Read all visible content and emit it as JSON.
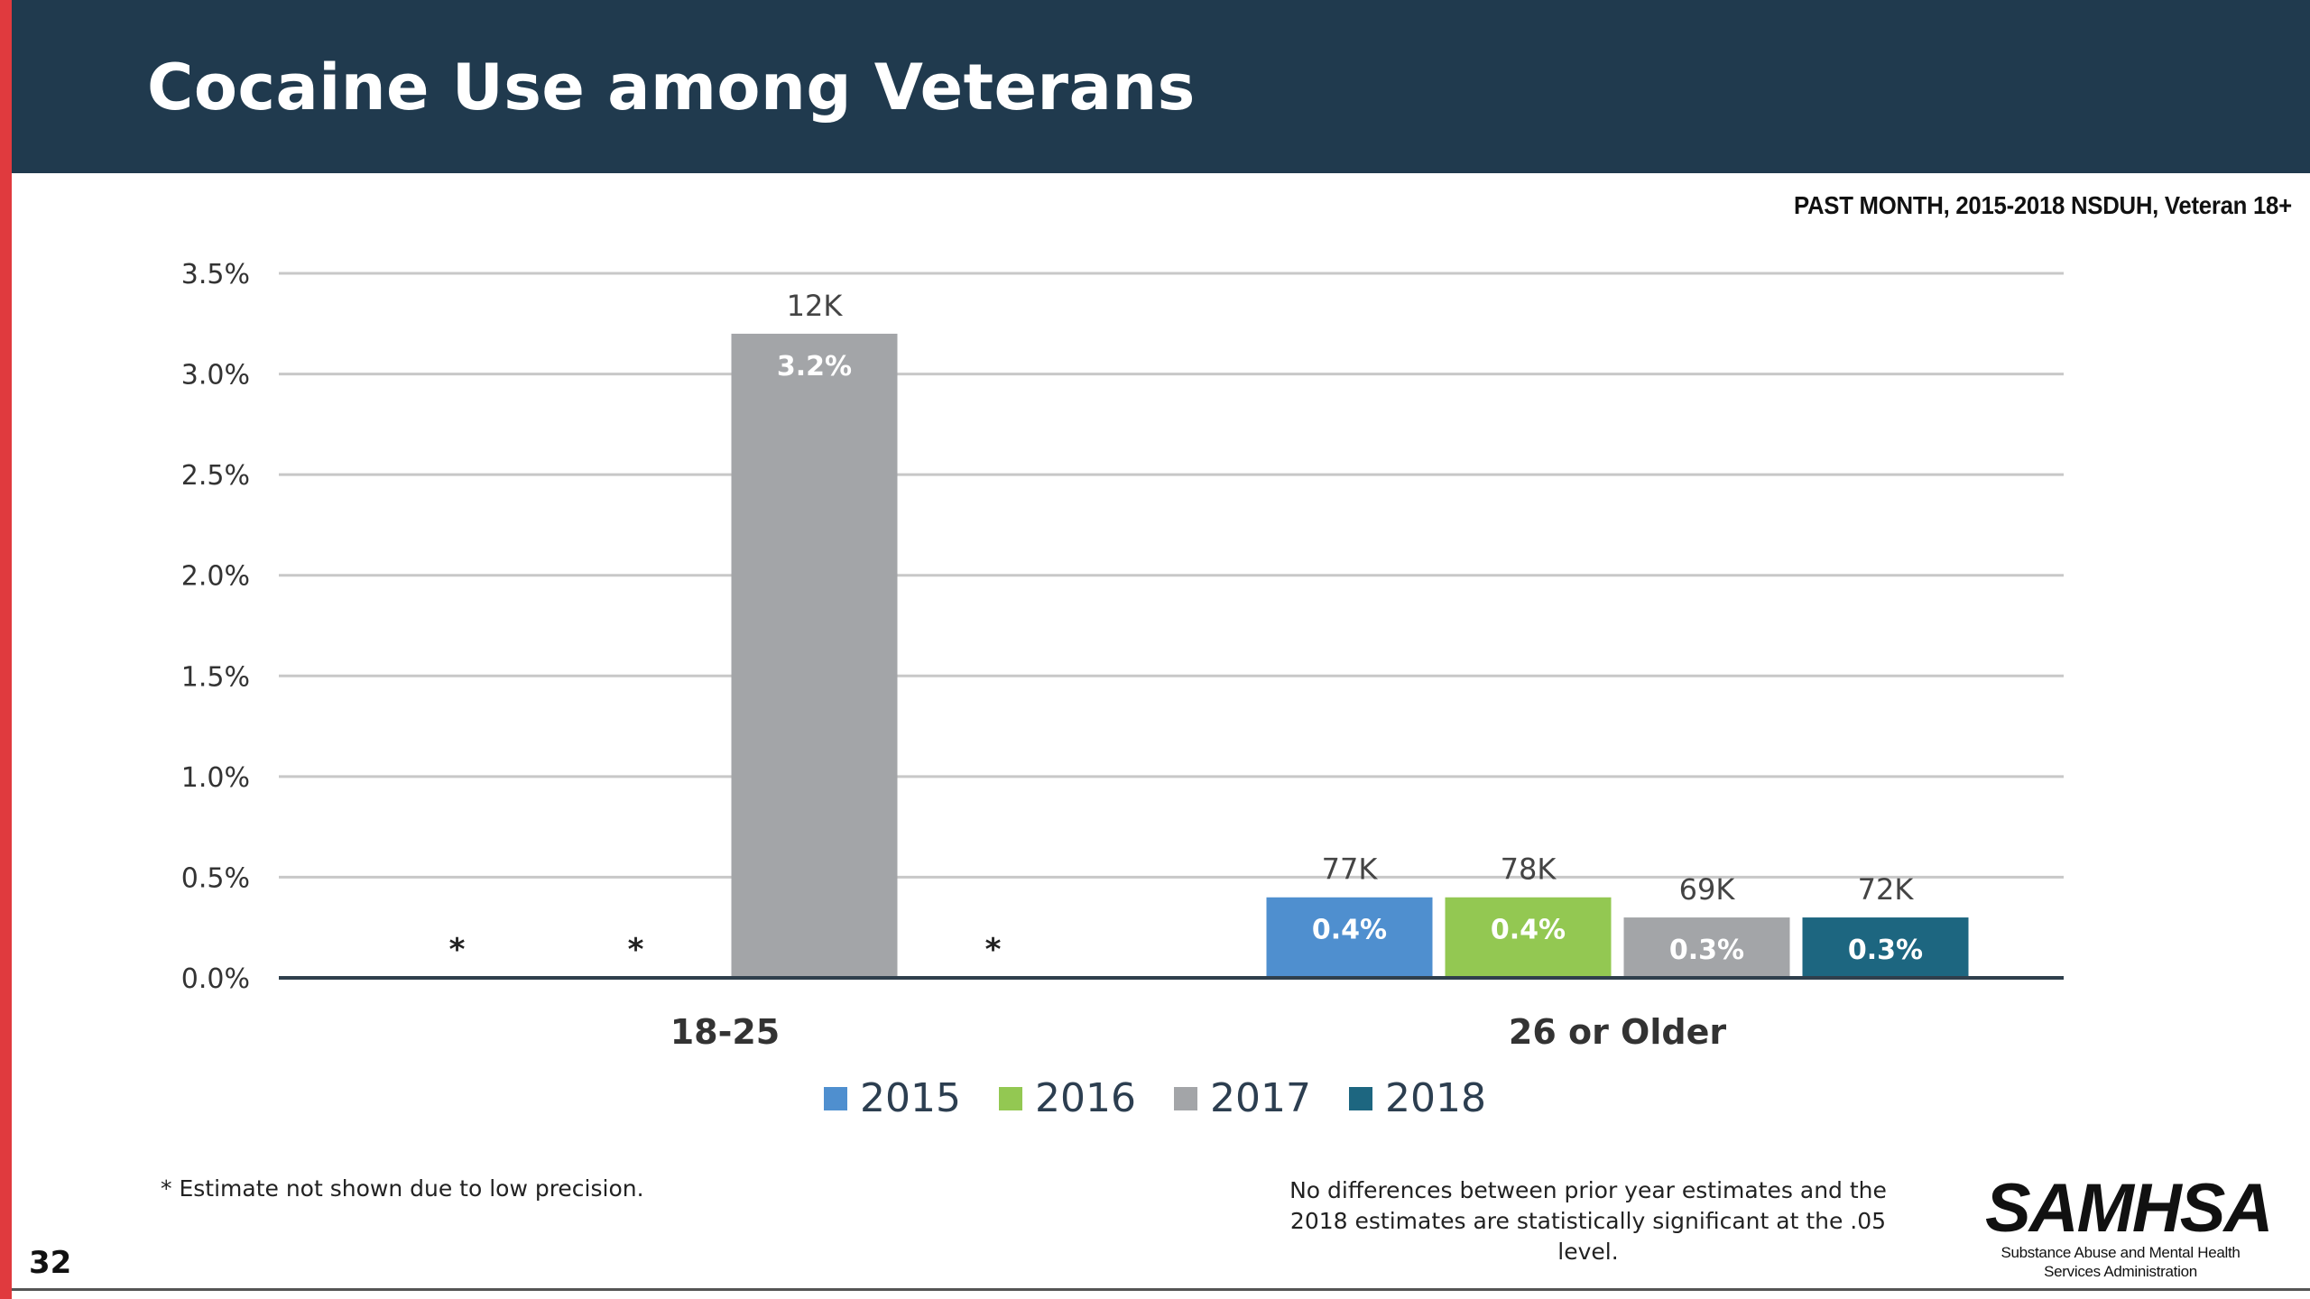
{
  "slide": {
    "title": "Cocaine Use among Veterans",
    "subtitle": "PAST MONTH, 2015-2018 NSDUH, Veteran 18+",
    "page_number": "32",
    "footnote_left": "* Estimate not shown due to low precision.",
    "footnote_right": "No differences between prior year estimates and the 2018 estimates are statistically significant at the .05 level.",
    "logo_text": "SAMHSA",
    "logo_subtext": "Substance Abuse and Mental Health Services Administration",
    "colors": {
      "header": "#203a4e",
      "accent_bar": "#e03a3e"
    }
  },
  "chart_data": {
    "type": "bar",
    "title": "",
    "xlabel": "",
    "ylabel": "",
    "ylim": [
      0,
      3.5
    ],
    "y_ticks": [
      "0.0%",
      "0.5%",
      "1.0%",
      "1.5%",
      "2.0%",
      "2.5%",
      "3.0%",
      "3.5%"
    ],
    "grid": true,
    "legend_position": "bottom",
    "categories": [
      "18-25",
      "26 or Older"
    ],
    "series": [
      {
        "name": "2015",
        "color": "#4f8fcf",
        "values": [
          null,
          0.4
        ],
        "labels": [
          "",
          "0.4%"
        ],
        "counts": [
          "",
          "77K"
        ],
        "suppressed": [
          "*",
          ""
        ]
      },
      {
        "name": "2016",
        "color": "#93c852",
        "values": [
          null,
          0.4
        ],
        "labels": [
          "",
          "0.4%"
        ],
        "counts": [
          "",
          "78K"
        ],
        "suppressed": [
          "*",
          ""
        ]
      },
      {
        "name": "2017",
        "color": "#a3a5a8",
        "values": [
          3.2,
          0.3
        ],
        "labels": [
          "3.2%",
          "0.3%"
        ],
        "counts": [
          "12K",
          "69K"
        ],
        "suppressed": [
          "",
          ""
        ]
      },
      {
        "name": "2018",
        "color": "#1d6680",
        "values": [
          null,
          0.3
        ],
        "labels": [
          "",
          "0.3%"
        ],
        "counts": [
          "",
          "72K"
        ],
        "suppressed": [
          "*",
          ""
        ]
      }
    ]
  }
}
